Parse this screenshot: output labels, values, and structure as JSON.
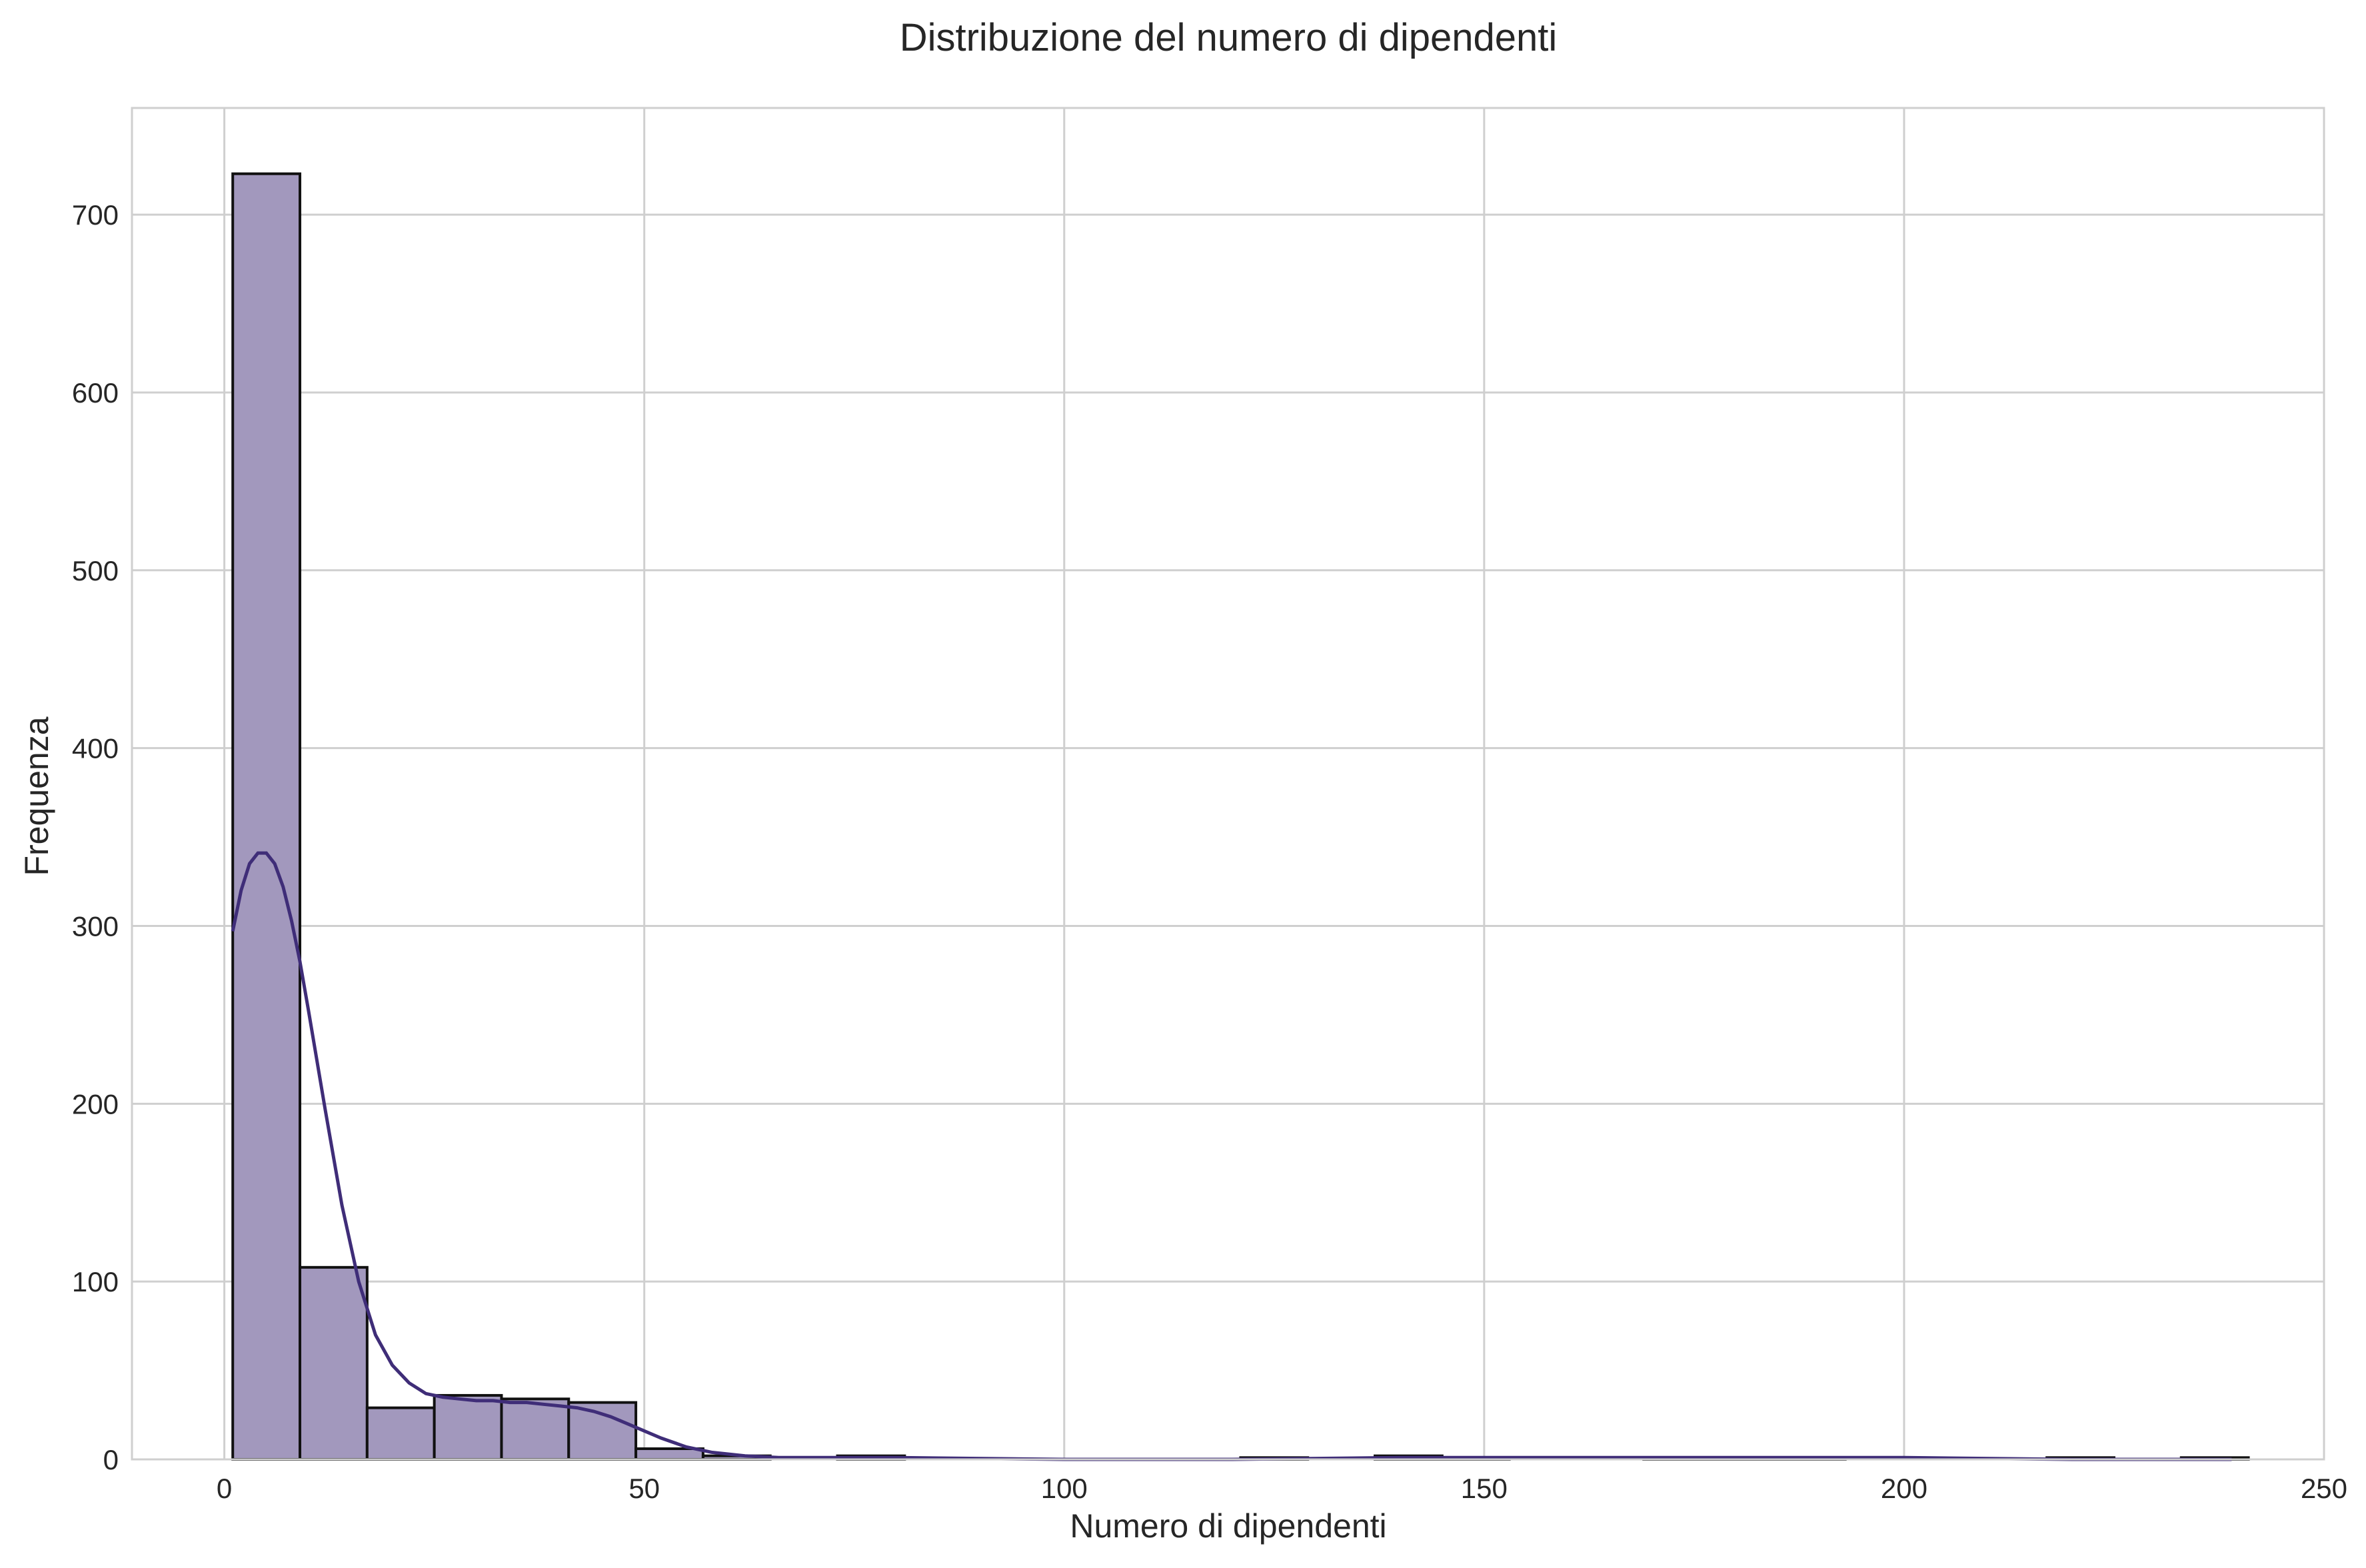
{
  "chart_data": {
    "type": "bar",
    "subtype": "histogram-with-kde",
    "title": "Distribuzione del numero di dipendenti",
    "xlabel": "Numero di dipendenti",
    "ylabel": "Frequenza",
    "xlim": [
      -11,
      250
    ],
    "ylim": [
      0,
      760
    ],
    "xticks": [
      0,
      50,
      100,
      150,
      200,
      250
    ],
    "yticks": [
      0,
      100,
      200,
      300,
      400,
      500,
      600,
      700
    ],
    "grid": true,
    "legend": "none",
    "colors": {
      "bar_fill": "#a298bd",
      "bar_edge": "#111111",
      "kde_line": "#3f2d78",
      "grid": "#cfcfcf",
      "frame": "#cfcfcf"
    },
    "bins": [
      {
        "start": 1,
        "end": 9,
        "count": 723
      },
      {
        "start": 9,
        "end": 17,
        "count": 108
      },
      {
        "start": 17,
        "end": 25,
        "count": 29
      },
      {
        "start": 25,
        "end": 33,
        "count": 36
      },
      {
        "start": 33,
        "end": 41,
        "count": 34
      },
      {
        "start": 41,
        "end": 49,
        "count": 32
      },
      {
        "start": 49,
        "end": 57,
        "count": 6
      },
      {
        "start": 57,
        "end": 65,
        "count": 2
      },
      {
        "start": 65,
        "end": 73,
        "count": 0
      },
      {
        "start": 73,
        "end": 81,
        "count": 2
      },
      {
        "start": 81,
        "end": 89,
        "count": 0
      },
      {
        "start": 89,
        "end": 97,
        "count": 0
      },
      {
        "start": 97,
        "end": 105,
        "count": 0
      },
      {
        "start": 105,
        "end": 113,
        "count": 0
      },
      {
        "start": 113,
        "end": 121,
        "count": 0
      },
      {
        "start": 121,
        "end": 129,
        "count": 1
      },
      {
        "start": 129,
        "end": 137,
        "count": 0
      },
      {
        "start": 137,
        "end": 145,
        "count": 2
      },
      {
        "start": 145,
        "end": 153,
        "count": 1
      },
      {
        "start": 153,
        "end": 161,
        "count": 0
      },
      {
        "start": 161,
        "end": 169,
        "count": 0
      },
      {
        "start": 169,
        "end": 177,
        "count": 1
      },
      {
        "start": 177,
        "end": 185,
        "count": 1
      },
      {
        "start": 185,
        "end": 193,
        "count": 1
      },
      {
        "start": 193,
        "end": 201,
        "count": 0
      },
      {
        "start": 201,
        "end": 209,
        "count": 0
      },
      {
        "start": 209,
        "end": 217,
        "count": 0
      },
      {
        "start": 217,
        "end": 225,
        "count": 1
      },
      {
        "start": 225,
        "end": 233,
        "count": 0
      },
      {
        "start": 233,
        "end": 241,
        "count": 1
      }
    ],
    "kde": {
      "x": [
        1,
        2,
        3,
        4,
        5,
        6,
        7,
        8,
        9,
        10,
        12,
        14,
        16,
        18,
        20,
        22,
        24,
        26,
        28,
        30,
        32,
        34,
        36,
        38,
        40,
        42,
        44,
        46,
        48,
        50,
        52,
        55,
        58,
        62,
        66,
        70,
        80,
        100,
        120,
        140,
        160,
        180,
        200,
        220,
        239
      ],
      "y": [
        297,
        320,
        335,
        341,
        341,
        335,
        322,
        303,
        280,
        253,
        197,
        143,
        100,
        70,
        53,
        43,
        37,
        35,
        34,
        33,
        33,
        32,
        32,
        31,
        30,
        29,
        27,
        24,
        20,
        16,
        12,
        7,
        4,
        2,
        1,
        1,
        1,
        0,
        0,
        1,
        1,
        1,
        1,
        0,
        0
      ]
    }
  }
}
